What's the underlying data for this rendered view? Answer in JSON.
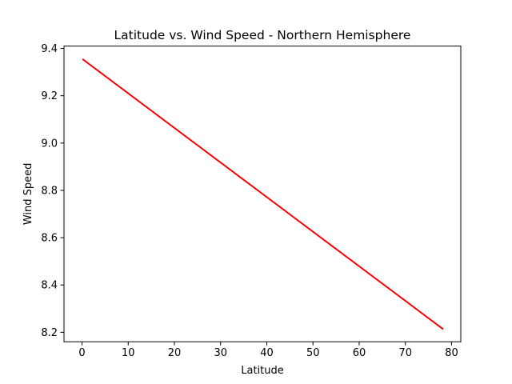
{
  "chart_data": {
    "type": "line",
    "title": "Latitude vs. Wind Speed - Northern Hemisphere",
    "xlabel": "Latitude",
    "ylabel": "Wind Speed",
    "xlim": [
      -3.9,
      82
    ],
    "ylim": [
      8.16,
      9.41
    ],
    "xticks": [
      0,
      10,
      20,
      30,
      40,
      50,
      60,
      70,
      80
    ],
    "xtick_labels": [
      "0",
      "10",
      "20",
      "30",
      "40",
      "50",
      "60",
      "70",
      "80"
    ],
    "yticks": [
      8.2,
      8.4,
      8.6,
      8.8,
      9.0,
      9.2,
      9.4
    ],
    "ytick_labels": [
      "8.2",
      "8.4",
      "8.6",
      "8.8",
      "9.0",
      "9.2",
      "9.4"
    ],
    "grid": false,
    "legend": null,
    "series": [
      {
        "color": "#ff0000",
        "x": [
          0.1,
          78.2
        ],
        "y": [
          9.355,
          8.213
        ]
      }
    ]
  }
}
